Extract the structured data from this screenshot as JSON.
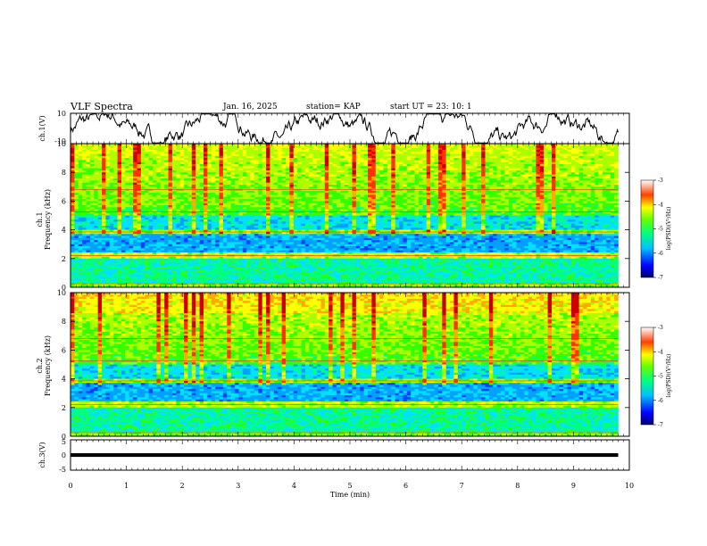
{
  "header": {
    "title": "VLF Spectra",
    "date": "Jan. 16, 2025",
    "station": "station= KAP",
    "start_ut": "start UT =  23: 10: 1"
  },
  "chart_data": [
    {
      "id": "ch1-waveform",
      "type": "line",
      "ylabel": "ch.1(V)",
      "ylim": [
        -10,
        10
      ],
      "yticks": [
        "10",
        "-10"
      ],
      "xlim": [
        0,
        10
      ],
      "series": [
        {
          "name": "ch.1",
          "note": "noisy waveform, mostly between -10 and 10 V"
        }
      ]
    },
    {
      "id": "ch1-spectrogram",
      "type": "heatmap",
      "ylabel": "Frequency (kHz)",
      "channel_label": "ch.1",
      "ylim": [
        0,
        10
      ],
      "yticks": [
        "0",
        "2",
        "4",
        "6",
        "8",
        "10"
      ],
      "xlim": [
        0,
        9.8
      ],
      "colorbar": {
        "label": "log(PSD)(V²/Hz)",
        "range": [
          -7,
          -3
        ],
        "ticks": [
          "-3",
          "-4",
          "-5",
          "-6",
          "-7"
        ]
      }
    },
    {
      "id": "ch2-spectrogram",
      "type": "heatmap",
      "ylabel": "Frequency (kHz)",
      "channel_label": "ch.2",
      "ylim": [
        0,
        10
      ],
      "yticks": [
        "0",
        "2",
        "4",
        "6",
        "8",
        "10"
      ],
      "xlim": [
        0,
        9.8
      ],
      "colorbar": {
        "label": "log(PSD)(V²/Hz)",
        "range": [
          -7,
          -3
        ],
        "ticks": [
          "-3",
          "-4",
          "-5",
          "-6",
          "-7"
        ]
      }
    },
    {
      "id": "ch3-signal",
      "type": "line",
      "ylabel": "ch.3(V)",
      "ylim": [
        -5,
        5
      ],
      "yticks": [
        "5",
        "0",
        "-5"
      ],
      "xlim": [
        0,
        10
      ],
      "series": [
        {
          "name": "ch.3",
          "value_range": [
            -0.6,
            0.6
          ]
        }
      ]
    }
  ],
  "xaxis": {
    "label": "Time (min)",
    "ticks": [
      "0",
      "1",
      "2",
      "3",
      "4",
      "5",
      "6",
      "7",
      "8",
      "9",
      "10"
    ]
  },
  "colors": {
    "scale": [
      "#0000cc",
      "#0044ff",
      "#00a0ff",
      "#00e0ff",
      "#00ff80",
      "#33ff00",
      "#aaff00",
      "#ffff00",
      "#ffaa00",
      "#ff3300",
      "#cc0000"
    ]
  }
}
